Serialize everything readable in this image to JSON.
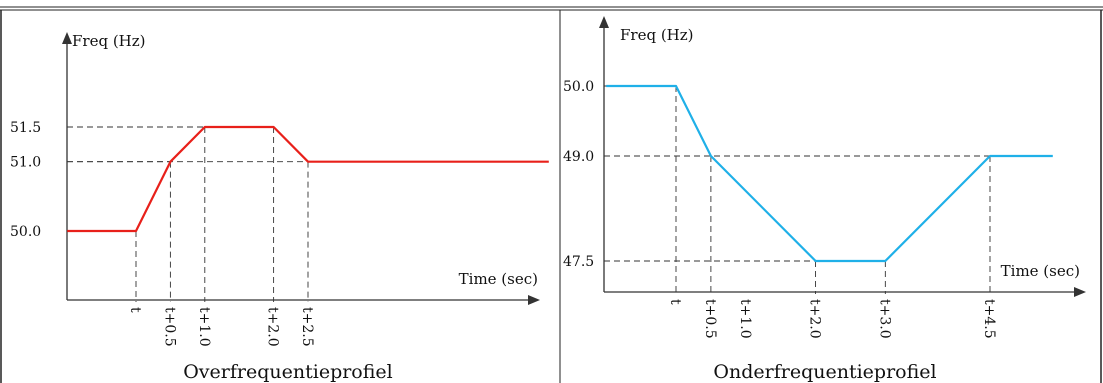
{
  "chart_data": [
    {
      "type": "line",
      "title": "Overfrequentieprofiel",
      "ylabel": "Freq (Hz)",
      "xlabel": "Time (sec)",
      "color": "#e8201a",
      "y_ticks": [
        {
          "label": "51.5",
          "value": 51.5
        },
        {
          "label": "51.0",
          "value": 51.0
        },
        {
          "label": "50.0",
          "value": 50.0
        }
      ],
      "x_ticks": [
        {
          "label": "t",
          "value": 0
        },
        {
          "label": "t+0.5",
          "value": 0.5
        },
        {
          "label": "t+1.0",
          "value": 1.0
        },
        {
          "label": "t+2.0",
          "value": 2.0
        },
        {
          "label": "t+2.5",
          "value": 2.5
        }
      ],
      "series": [
        {
          "x": [
            -1.0,
            0,
            0.5,
            1.0,
            2.0,
            2.5,
            6.0
          ],
          "y": [
            50.0,
            50.0,
            51.0,
            51.5,
            51.5,
            51.0,
            51.0
          ]
        }
      ],
      "guides": [
        {
          "x": 0.5,
          "y": 51.0
        },
        {
          "x": 1.0,
          "y": 51.5
        },
        {
          "x": 2.0,
          "y": 51.5
        },
        {
          "x": 2.5,
          "y": 51.0
        },
        {
          "x": 0,
          "y": 50.0
        }
      ],
      "grid": false
    },
    {
      "type": "line",
      "title": "Onderfrequentieprofiel",
      "ylabel": "Freq (Hz)",
      "xlabel": "Time (sec)",
      "color": "#1fb0e8",
      "y_ticks": [
        {
          "label": "50.0",
          "value": 50.0
        },
        {
          "label": "49.0",
          "value": 49.0
        },
        {
          "label": "47.5",
          "value": 47.5
        }
      ],
      "x_ticks": [
        {
          "label": "t",
          "value": 0
        },
        {
          "label": "t+0.5",
          "value": 0.5
        },
        {
          "label": "t+1.0",
          "value": 1.0
        },
        {
          "label": "t+2.0",
          "value": 2.0
        },
        {
          "label": "t+3.0",
          "value": 3.0
        },
        {
          "label": "t+4.5",
          "value": 4.5
        }
      ],
      "series": [
        {
          "x": [
            -1.0,
            0,
            0.5,
            2.0,
            3.0,
            4.5,
            5.4
          ],
          "y": [
            50.0,
            50.0,
            49.0,
            47.5,
            47.5,
            49.0,
            49.0
          ]
        }
      ],
      "guides": [
        {
          "x": 0,
          "y": 50.0
        },
        {
          "x": 0.5,
          "y": 49.0
        },
        {
          "x": 2.0,
          "y": 47.5
        },
        {
          "x": 3.0,
          "y": 47.5
        },
        {
          "x": 4.5,
          "y": 49.0
        }
      ],
      "grid": false
    }
  ]
}
